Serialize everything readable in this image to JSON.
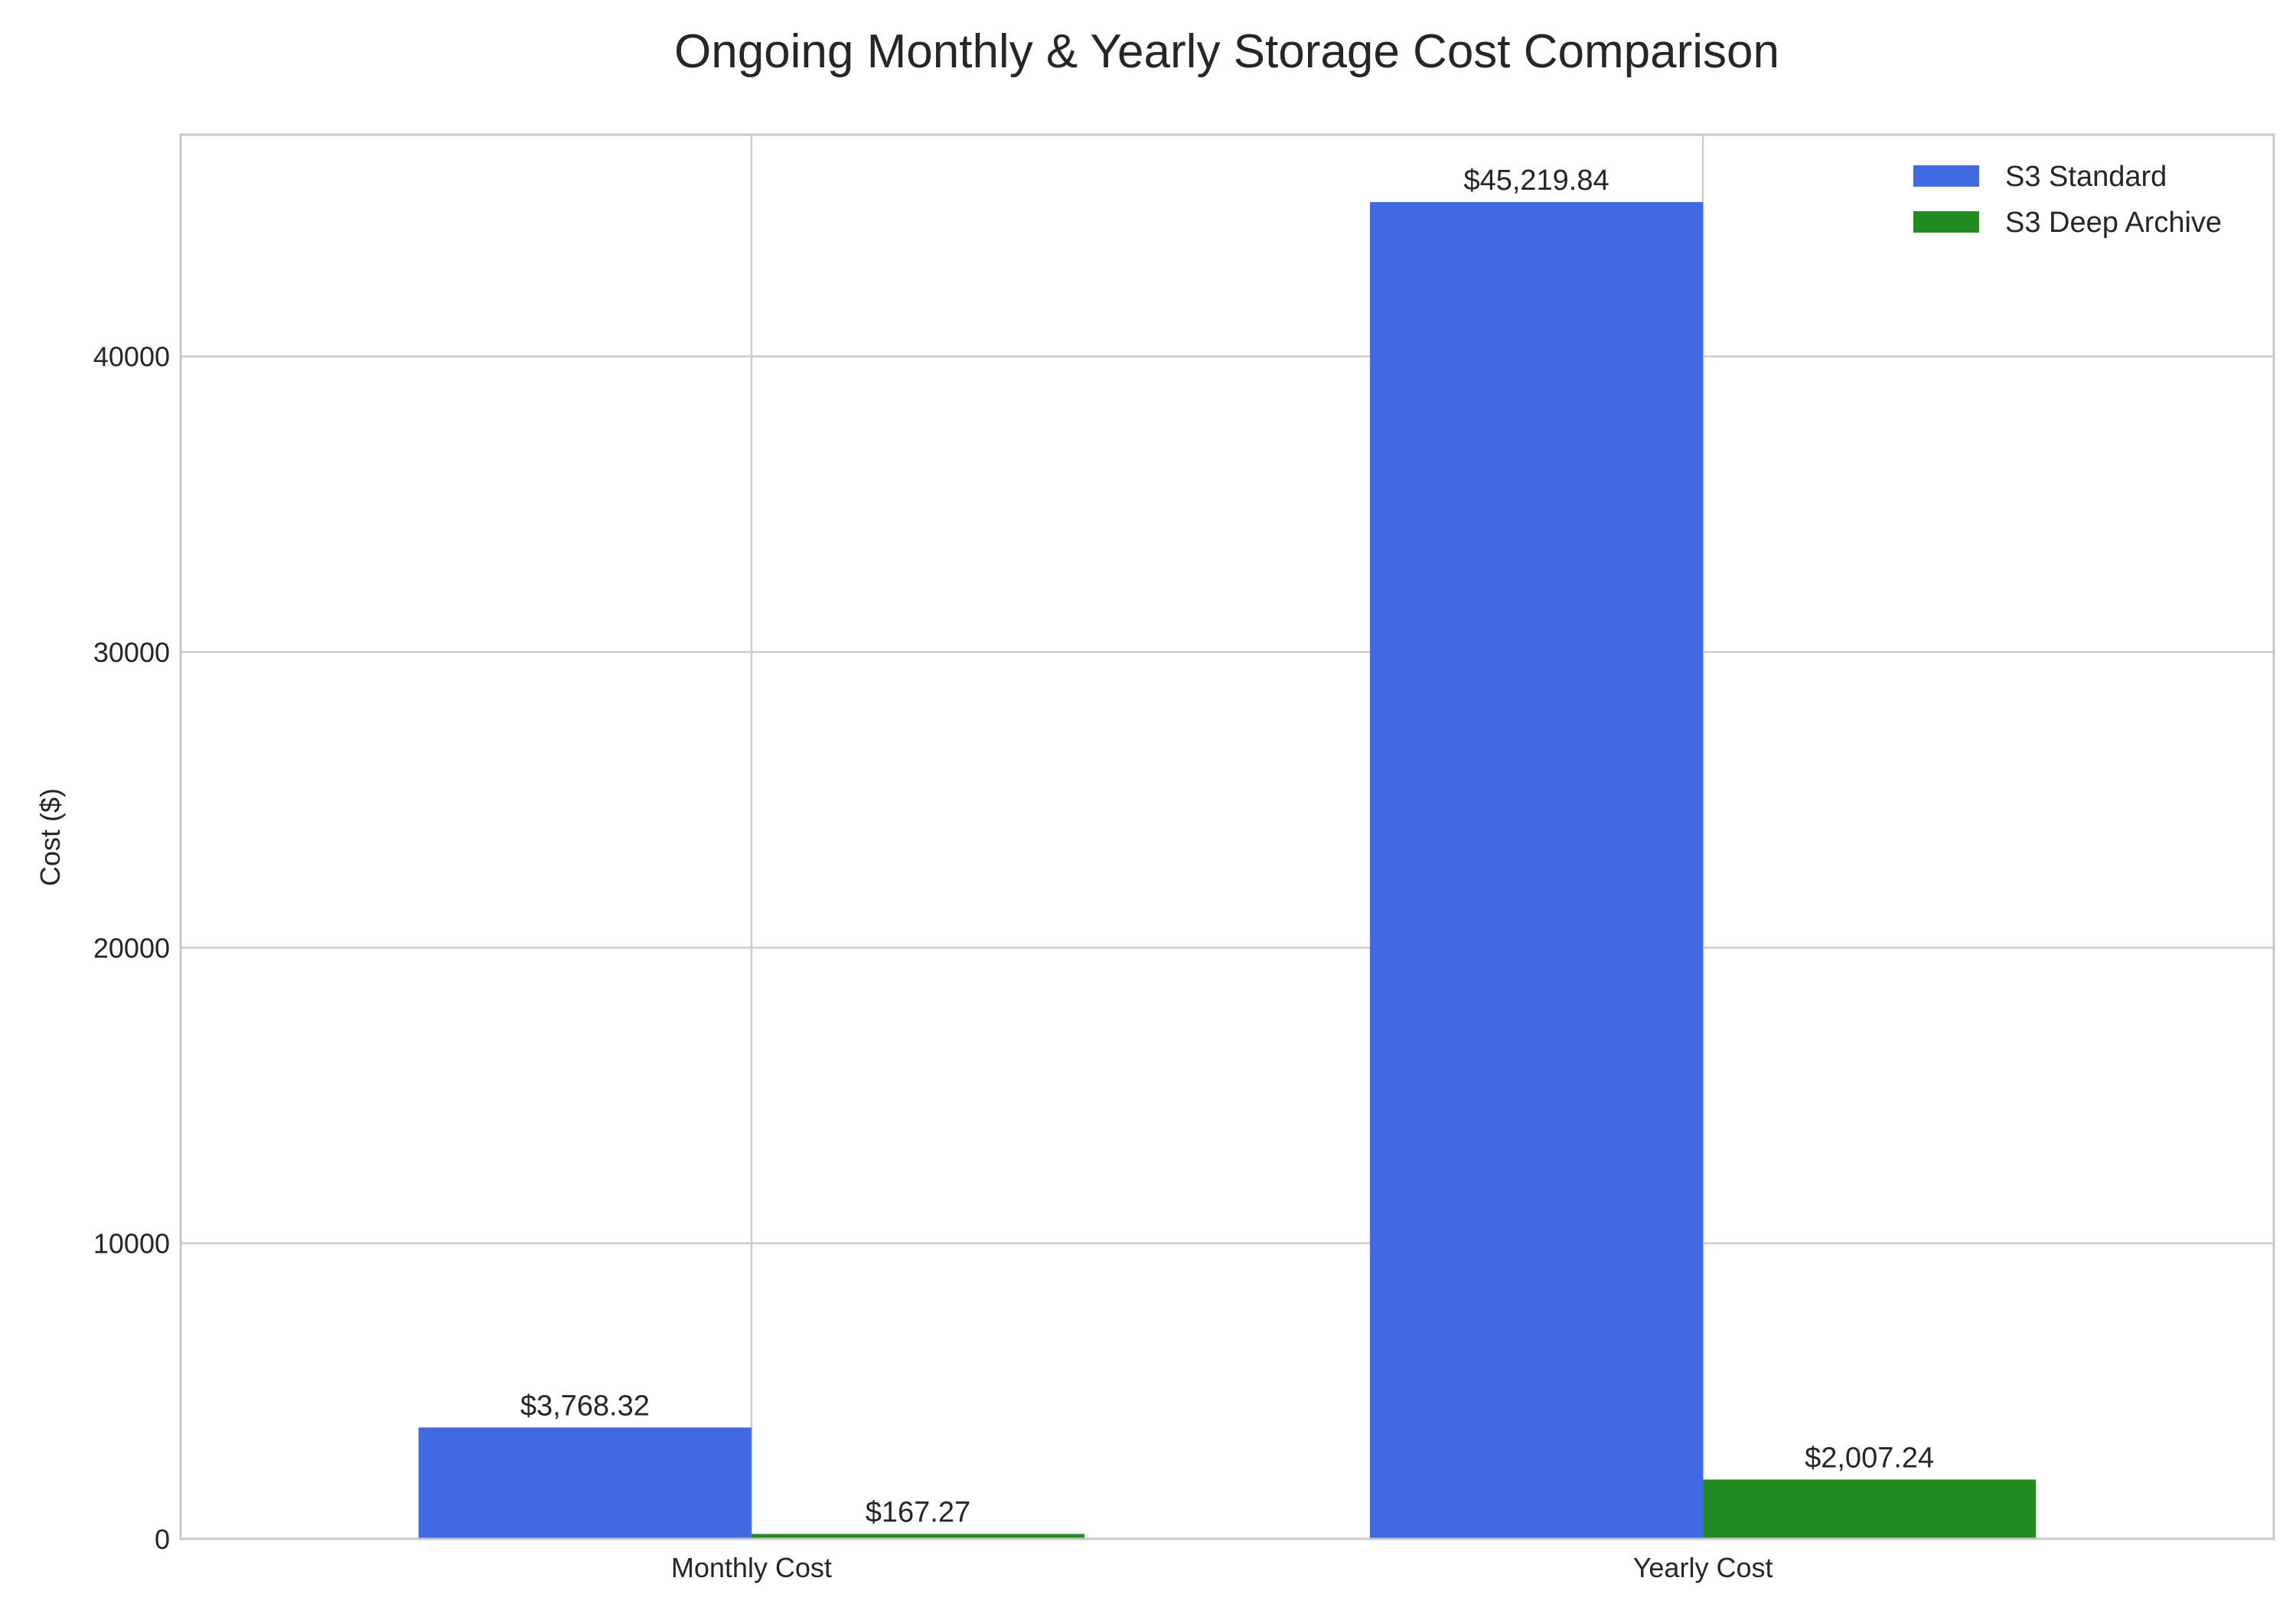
{
  "chart_data": {
    "type": "bar",
    "title": "Ongoing Monthly & Yearly Storage Cost Comparison",
    "xlabel": "",
    "ylabel": "Cost ($)",
    "categories": [
      "Monthly Cost",
      "Yearly Cost"
    ],
    "series": [
      {
        "name": "S3 Standard",
        "color": "#4169e1",
        "values": [
          3768.32,
          45219.84
        ],
        "labels": [
          "$3,768.32",
          "$45,219.84"
        ]
      },
      {
        "name": "S3 Deep Archive",
        "color": "#228b22",
        "values": [
          167.27,
          2007.24
        ],
        "labels": [
          "$167.27",
          "$2,007.24"
        ]
      }
    ],
    "ylim": [
      0,
      47500
    ],
    "yticks": [
      0,
      10000,
      20000,
      30000,
      40000
    ],
    "ytick_labels": [
      "0",
      "10000",
      "20000",
      "30000",
      "40000"
    ],
    "grid": true,
    "legend_position": "top-right"
  }
}
